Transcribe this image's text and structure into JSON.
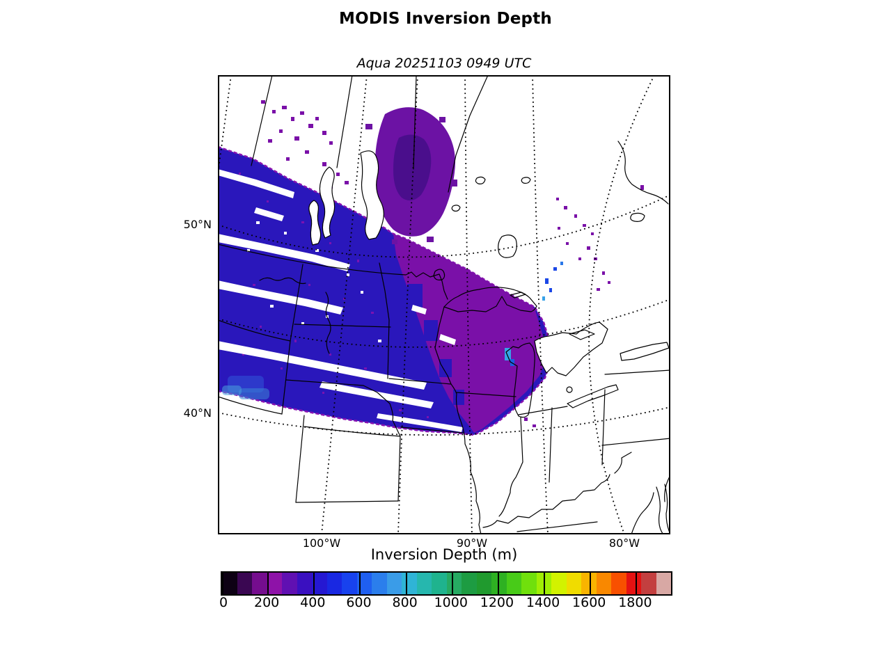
{
  "title": "MODIS Inversion Depth",
  "subtitle": "Aqua 20251103 0949 UTC",
  "map": {
    "lat_labels": [
      "50°N",
      "40°N"
    ],
    "lon_labels": [
      "100°W",
      "90°W",
      "80°W"
    ],
    "gridline_style": "dotted",
    "background_color": "#ffffff",
    "boundary_color": "#000000"
  },
  "colorbar": {
    "label": "Inversion Depth (m)",
    "ticks": [
      "0",
      "200",
      "400",
      "600",
      "800",
      "1000",
      "1200",
      "1400",
      "1600",
      "1800"
    ],
    "tick_values": [
      0,
      200,
      400,
      600,
      800,
      1000,
      1200,
      1400,
      1600,
      1800
    ],
    "range": [
      0,
      1950
    ],
    "colors": [
      "#0d0114",
      "#3a0752",
      "#750d8e",
      "#8e12a8",
      "#6010b2",
      "#3a10c0",
      "#2518d2",
      "#1928e2",
      "#1842ee",
      "#1f5ff0",
      "#2b7eec",
      "#3a9ce8",
      "#2fb4d6",
      "#26b7ae",
      "#1fb38e",
      "#26aa62",
      "#1d9c42",
      "#209a2e",
      "#2eb122",
      "#48cb18",
      "#70e00c",
      "#a0ee04",
      "#d2f200",
      "#f0dc00",
      "#f9b400",
      "#f98800",
      "#f85000",
      "#e51212",
      "#c33f3f",
      "#d8a8a4"
    ]
  },
  "chart_data": {
    "type": "heatmap",
    "title": "MODIS Inversion Depth",
    "subtitle": "Aqua 20251103 0949 UTC",
    "colorbar_label": "Inversion Depth (m)",
    "colorbar_ticks": [
      0,
      200,
      400,
      600,
      800,
      1000,
      1200,
      1400,
      1600,
      1800
    ],
    "colorbar_range_m": [
      0,
      1950
    ],
    "lat_tick_labels": [
      "50°N",
      "40°N"
    ],
    "lon_tick_labels": [
      "100°W",
      "90°W",
      "80°W"
    ],
    "legend_position": "bottom",
    "grid": "dotted graticule every 5 degrees",
    "observed_regions": [
      {
        "area": "Montana / Dakotas / Nebraska / western Minnesota / Iowa swath",
        "inversion_depth_m": "250-400",
        "color": "#2a17bb"
      },
      {
        "area": "eastern Minnesota / Wisconsin / western Lake Superior / Upper Michigan",
        "inversion_depth_m": "100-250",
        "color": "#7a10a8"
      },
      {
        "area": "central Manitoba, northeast of Lake Winnipeg",
        "inversion_depth_m": "100-250",
        "color": "#6c12a4"
      },
      {
        "area": "scattered pixels near Green Bay and north of Lake Michigan",
        "inversion_depth_m": "400-600",
        "color": "#37a2e8"
      },
      {
        "area": "cloud gaps / no retrieval streaks inside swath",
        "inversion_depth_m": "no data",
        "color": "#ffffff"
      }
    ]
  }
}
